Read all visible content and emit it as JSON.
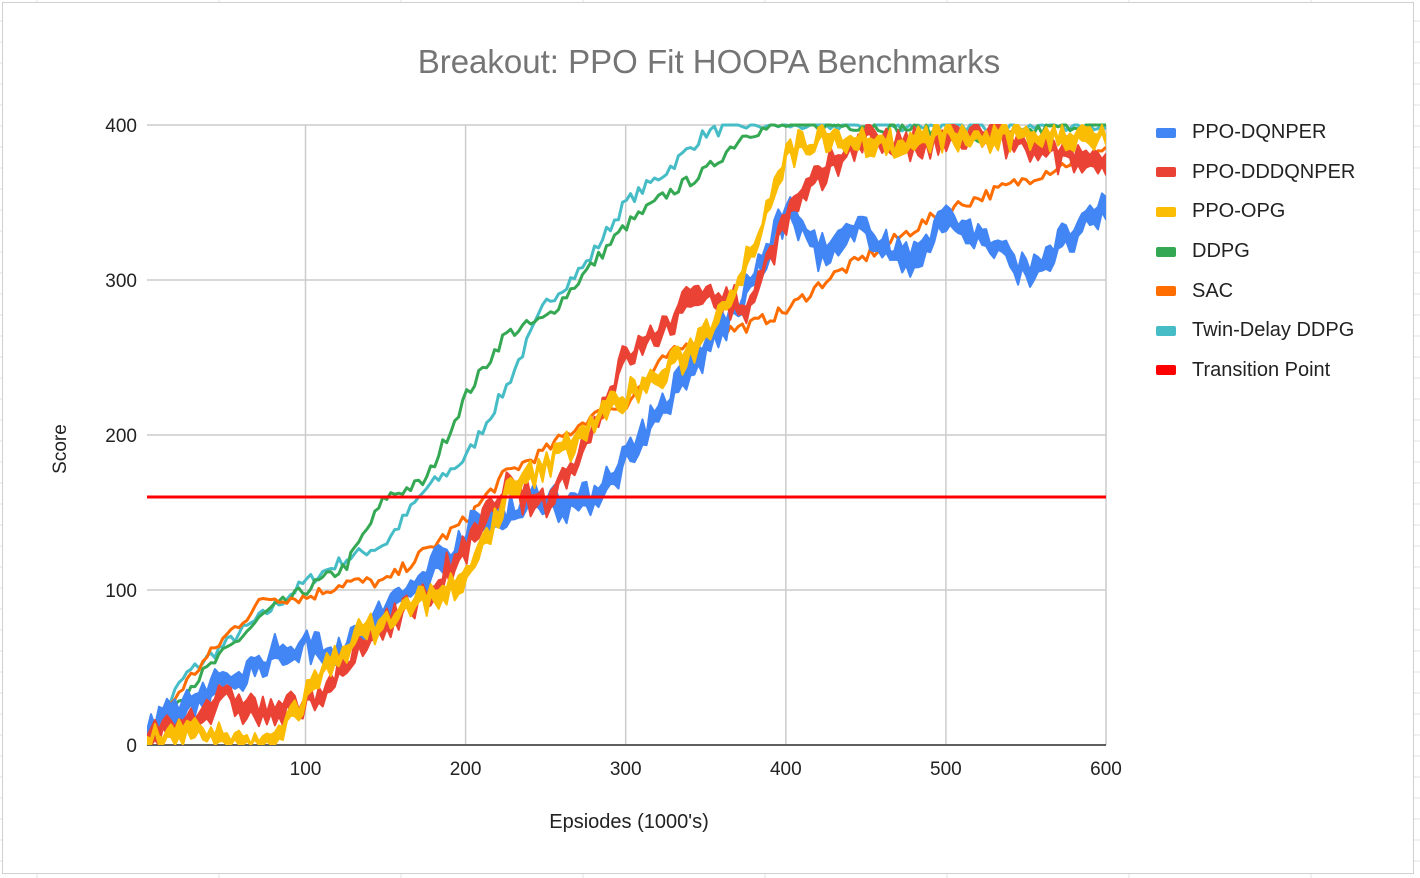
{
  "chart_data": {
    "type": "line",
    "title": "Breakout: PPO Fit HOOPA Benchmarks",
    "xlabel": "Epsiodes (1000's)",
    "ylabel": "Score",
    "xlim": [
      1,
      600
    ],
    "ylim": [
      0,
      400
    ],
    "x_ticks": [
      "100",
      "200",
      "300",
      "400",
      "500",
      "600"
    ],
    "y_ticks": [
      "0",
      "100",
      "200",
      "300",
      "400"
    ],
    "grid": true,
    "legend_position": "right",
    "x": [
      1,
      25,
      50,
      75,
      100,
      125,
      150,
      175,
      200,
      225,
      250,
      275,
      300,
      325,
      350,
      375,
      400,
      425,
      450,
      475,
      500,
      525,
      550,
      575,
      600
    ],
    "series": [
      {
        "name": "PPO-DQNPER",
        "color": "#4285f4",
        "band": 12,
        "values": [
          5,
          25,
          40,
          55,
          65,
          60,
          85,
          110,
          135,
          150,
          160,
          155,
          185,
          220,
          255,
          290,
          345,
          315,
          335,
          310,
          340,
          325,
          305,
          325,
          345
        ]
      },
      {
        "name": "PPO-DDDQNPER",
        "color": "#ea4335",
        "band": 10,
        "values": [
          5,
          15,
          30,
          20,
          25,
          50,
          80,
          95,
          125,
          165,
          155,
          195,
          250,
          270,
          295,
          280,
          340,
          370,
          395,
          385,
          390,
          395,
          385,
          380,
          375
        ]
      },
      {
        "name": "PPO-OPG",
        "color": "#fbbc04",
        "band": 9,
        "values": [
          5,
          10,
          0,
          0,
          30,
          65,
          80,
          95,
          105,
          160,
          180,
          205,
          225,
          240,
          265,
          310,
          380,
          395,
          390,
          385,
          395,
          390,
          395,
          392,
          395
        ]
      },
      {
        "name": "DDPG",
        "color": "#34a853",
        "band": 0,
        "values": [
          5,
          35,
          60,
          85,
          100,
          115,
          160,
          170,
          225,
          265,
          275,
          305,
          335,
          355,
          370,
          395,
          400,
          400,
          400,
          398,
          395,
          390,
          395,
          400,
          400
        ]
      },
      {
        "name": "SAC",
        "color": "#ff6d01",
        "band": 0,
        "values": [
          5,
          40,
          70,
          95,
          95,
          105,
          105,
          125,
          145,
          175,
          190,
          210,
          220,
          250,
          265,
          270,
          280,
          300,
          315,
          330,
          345,
          355,
          365,
          375,
          385
        ]
      },
      {
        "name": "Twin-Delay DDPG",
        "color": "#46bdc6",
        "band": 0,
        "values": [
          5,
          45,
          65,
          85,
          105,
          120,
          130,
          165,
          185,
          230,
          285,
          310,
          350,
          370,
          395,
          400,
          400,
          400,
          400,
          400,
          400,
          400,
          400,
          400,
          400
        ]
      },
      {
        "name": "Transition Point",
        "color": "#ff0000",
        "band": 0,
        "values": [
          160,
          160,
          160,
          160,
          160,
          160,
          160,
          160,
          160,
          160,
          160,
          160,
          160,
          160,
          160,
          160,
          160,
          160,
          160,
          160,
          160,
          160,
          160,
          160,
          160
        ]
      }
    ]
  }
}
